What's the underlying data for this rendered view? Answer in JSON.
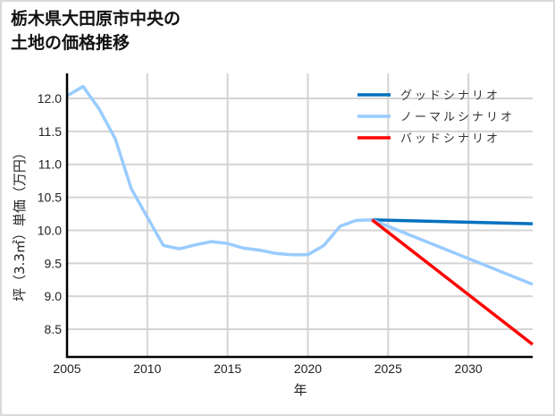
{
  "title_line1": "栃木県大田原市中央の",
  "title_line2": "土地の価格推移",
  "chart_data": {
    "type": "line",
    "title": "栃木県大田原市中央の土地の価格推移",
    "xlabel": "年",
    "ylabel": "坪（3.3㎡）単価（万円）",
    "xlim": [
      2005,
      2034
    ],
    "ylim": [
      8.08,
      12.38
    ],
    "xticks": [
      2005,
      2010,
      2015,
      2020,
      2025,
      2030
    ],
    "yticks": [
      8.5,
      9.0,
      9.5,
      10.0,
      10.5,
      11.0,
      11.5,
      12.0
    ],
    "ytick_labels": [
      "8.5",
      "9.0",
      "9.5",
      "10.0",
      "10.5",
      "11.0",
      "11.5",
      "12.0"
    ],
    "grid": true,
    "legend_position": "upper right",
    "series": [
      {
        "name": "ノーマルシナリオ",
        "color": "#99ccff",
        "x": [
          2005,
          2006,
          2007,
          2008,
          2009,
          2010,
          2011,
          2012,
          2013,
          2014,
          2015,
          2016,
          2017,
          2018,
          2019,
          2020,
          2021,
          2022,
          2023,
          2024,
          2034
        ],
        "values": [
          12.04,
          12.18,
          11.84,
          11.39,
          10.63,
          10.2,
          9.77,
          9.72,
          9.78,
          9.83,
          9.8,
          9.73,
          9.7,
          9.65,
          9.63,
          9.63,
          9.77,
          10.06,
          10.15,
          10.16,
          9.18
        ]
      },
      {
        "name": "グッドシナリオ",
        "color": "#0070c0",
        "x": [
          2024,
          2034
        ],
        "values": [
          10.16,
          10.1
        ]
      },
      {
        "name": "バッドシナリオ",
        "color": "#ff0000",
        "x": [
          2024,
          2034
        ],
        "values": [
          10.16,
          8.27
        ]
      }
    ],
    "legend": [
      "グッドシナリオ",
      "ノーマルシナリオ",
      "バッドシナリオ"
    ]
  }
}
